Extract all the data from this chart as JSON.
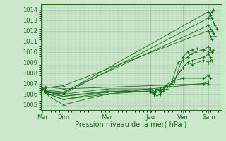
{
  "bg_color": "#cce8cc",
  "grid_color": "#aaccaa",
  "line_color": "#1a6b1a",
  "marker_color": "#1a6b1a",
  "ylabel_color": "#1a6b1a",
  "xlabel_color": "#1a6b1a",
  "tick_color": "#1a6b1a",
  "spine_color": "#1a6b1a",
  "xlabel": "Pression niveau de la mer( hPa )",
  "ylim": [
    1004.5,
    1014.5
  ],
  "yticks": [
    1005,
    1006,
    1007,
    1008,
    1009,
    1010,
    1011,
    1012,
    1013,
    1014
  ],
  "xtick_labels": [
    "Mar",
    "Dim",
    "Mer",
    "Jeu",
    "Ven",
    "Sam"
  ],
  "xtick_positions": [
    0.0,
    0.65,
    2.0,
    3.35,
    4.35,
    5.15
  ],
  "xlim": [
    -0.05,
    5.55
  ],
  "trajectories_x": [
    [
      0.0,
      0.1,
      0.65,
      5.15,
      5.2,
      5.25,
      5.3,
      5.35,
      5.4
    ],
    [
      0.0,
      0.1,
      0.65,
      5.15,
      5.2,
      5.25,
      5.3
    ],
    [
      0.0,
      0.1,
      0.65,
      5.15,
      5.2,
      5.25,
      5.3,
      5.35
    ],
    [
      0.0,
      0.1,
      0.65,
      5.15,
      5.2,
      5.25
    ],
    [
      0.0,
      0.1,
      0.2,
      0.65,
      2.0,
      3.35,
      3.45,
      3.55,
      3.65,
      3.75,
      3.85,
      3.95,
      4.1,
      4.35,
      4.5,
      4.65,
      4.8,
      5.0,
      5.15,
      5.2,
      5.25,
      5.3
    ],
    [
      0.0,
      0.1,
      0.2,
      0.65,
      2.0,
      3.35,
      3.45,
      3.55,
      3.65,
      3.75,
      3.85,
      4.0,
      4.2,
      4.35,
      4.5,
      4.6,
      4.75,
      5.0,
      5.15,
      5.2,
      5.25
    ],
    [
      0.0,
      0.1,
      0.2,
      0.65,
      2.0,
      3.35,
      3.45,
      3.55,
      3.65,
      3.75,
      3.85,
      4.0,
      4.35,
      4.5,
      4.65,
      5.0,
      5.15,
      5.2,
      5.25
    ],
    [
      0.0,
      0.1,
      0.2,
      0.65,
      2.0,
      3.35,
      3.45,
      3.55,
      3.65,
      3.75,
      3.85,
      4.0,
      4.35,
      4.5,
      4.65,
      5.0,
      5.15,
      5.2
    ],
    [
      0.0,
      0.1,
      0.2,
      0.65,
      2.0,
      3.35,
      3.5,
      3.65,
      3.8,
      4.0,
      4.35,
      5.0,
      5.15,
      5.2
    ],
    [
      0.0,
      0.1,
      0.2,
      0.65,
      2.0,
      3.35,
      5.0,
      5.15
    ],
    [
      0.0,
      0.1,
      0.65,
      5.15
    ]
  ],
  "trajectories_y": [
    [
      1006.5,
      1006.3,
      1006.1,
      1013.8,
      1013.5,
      1013.2,
      1012.8,
      1012.5,
      1012.2
    ],
    [
      1006.5,
      1006.2,
      1006.0,
      1013.2,
      1013.5,
      1013.8,
      1014.0
    ],
    [
      1006.5,
      1006.4,
      1006.2,
      1012.5,
      1012.2,
      1012.0,
      1011.8,
      1011.5
    ],
    [
      1006.5,
      1006.6,
      1006.8,
      1012.0,
      1011.5,
      1011.2
    ],
    [
      1006.5,
      1006.2,
      1005.8,
      1005.0,
      1006.0,
      1006.5,
      1006.2,
      1005.8,
      1006.0,
      1006.3,
      1006.5,
      1006.8,
      1007.2,
      1009.5,
      1010.0,
      1010.2,
      1010.3,
      1010.2,
      1010.5,
      1010.3,
      1010.0,
      1010.2
    ],
    [
      1006.5,
      1006.3,
      1006.0,
      1005.5,
      1006.2,
      1006.3,
      1006.0,
      1006.5,
      1006.2,
      1006.5,
      1006.8,
      1007.0,
      1009.0,
      1009.2,
      1009.5,
      1009.8,
      1010.0,
      1010.2,
      1010.0,
      1010.3,
      1010.0
    ],
    [
      1006.5,
      1006.4,
      1006.2,
      1005.8,
      1006.3,
      1006.2,
      1006.0,
      1006.5,
      1006.3,
      1006.5,
      1006.8,
      1007.0,
      1008.5,
      1009.0,
      1009.2,
      1009.5,
      1009.8,
      1009.5,
      1009.2
    ],
    [
      1006.5,
      1006.3,
      1006.0,
      1005.5,
      1006.0,
      1006.3,
      1006.0,
      1006.5,
      1006.2,
      1006.5,
      1006.8,
      1007.0,
      1008.5,
      1009.0,
      1008.8,
      1009.2,
      1009.0,
      1009.2
    ],
    [
      1006.5,
      1006.3,
      1006.0,
      1005.8,
      1006.2,
      1006.5,
      1006.2,
      1006.5,
      1006.8,
      1007.2,
      1007.5,
      1007.5,
      1007.8,
      1007.5
    ],
    [
      1006.5,
      1006.4,
      1006.2,
      1006.0,
      1006.5,
      1006.5,
      1007.0,
      1007.2
    ],
    [
      1006.5,
      1006.7,
      1006.5,
      1007.0
    ]
  ]
}
